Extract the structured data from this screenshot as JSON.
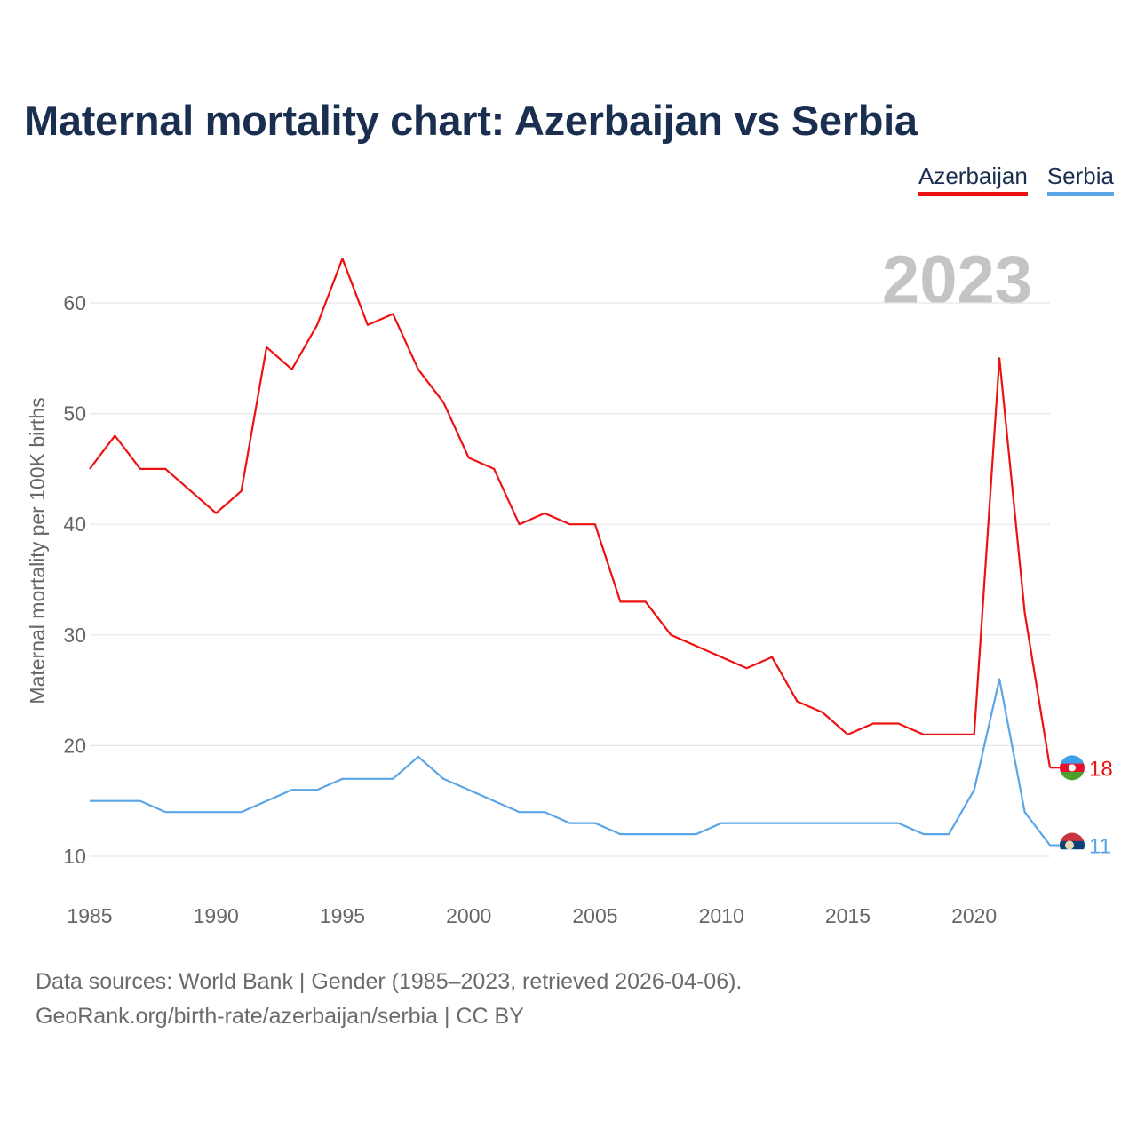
{
  "title": "Maternal mortality chart: Azerbaijan vs Serbia",
  "year_stamp": "2023",
  "legend": [
    {
      "label": "Azerbaijan",
      "color": "#ee1111"
    },
    {
      "label": "Serbia",
      "color": "#5aa5e6"
    }
  ],
  "chart_data": {
    "type": "line",
    "title": "Maternal mortality chart: Azerbaijan vs Serbia",
    "xlabel": "",
    "ylabel": "Maternal mortality per 100K births",
    "xlim": [
      1985,
      2023
    ],
    "ylim": [
      10,
      60
    ],
    "x_ticks": [
      1985,
      1990,
      1995,
      2000,
      2005,
      2010,
      2015,
      2020
    ],
    "y_ticks": [
      10,
      20,
      30,
      40,
      50,
      60
    ],
    "grid": true,
    "legend_position": "top-right",
    "x": [
      1985,
      1986,
      1987,
      1988,
      1989,
      1990,
      1991,
      1992,
      1993,
      1994,
      1995,
      1996,
      1997,
      1998,
      1999,
      2000,
      2001,
      2002,
      2003,
      2004,
      2005,
      2006,
      2007,
      2008,
      2009,
      2010,
      2011,
      2012,
      2013,
      2014,
      2015,
      2016,
      2017,
      2018,
      2019,
      2020,
      2021,
      2022,
      2023
    ],
    "series": [
      {
        "name": "Azerbaijan",
        "color": "#ee1111",
        "end_label": "18",
        "flag": "azerbaijan-flag-icon",
        "values": [
          45,
          48,
          45,
          45,
          43,
          41,
          43,
          56,
          54,
          58,
          64,
          58,
          59,
          54,
          51,
          46,
          45,
          40,
          41,
          40,
          40,
          33,
          33,
          30,
          29,
          28,
          27,
          28,
          24,
          23,
          21,
          22,
          22,
          21,
          21,
          21,
          55,
          32,
          18
        ]
      },
      {
        "name": "Serbia",
        "color": "#5aa5e6",
        "end_label": "11",
        "flag": "serbia-flag-icon",
        "values": [
          15,
          15,
          15,
          14,
          14,
          14,
          14,
          15,
          16,
          16,
          17,
          17,
          17,
          19,
          17,
          16,
          15,
          14,
          14,
          13,
          13,
          12,
          12,
          12,
          12,
          13,
          13,
          13,
          13,
          13,
          13,
          13,
          13,
          12,
          12,
          16,
          26,
          14,
          11
        ]
      }
    ]
  },
  "footer": {
    "source": "Data sources: World Bank | Gender (1985–2023, retrieved 2026-04-06).",
    "credit": "GeoRank.org/birth-rate/azerbaijan/serbia | CC BY"
  }
}
